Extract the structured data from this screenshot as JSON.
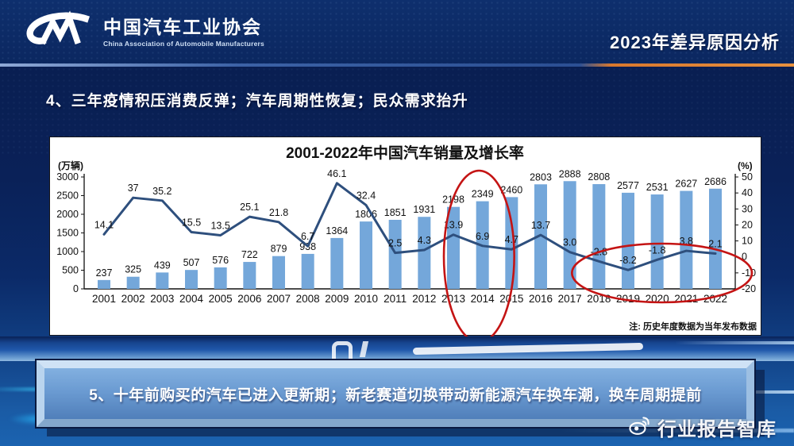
{
  "header": {
    "org_cn": "中国汽车工业协会",
    "org_en": "China Association of Automobile Manufacturers",
    "slide_title": "2023年差异原因分析"
  },
  "section4_title": "4、三年疫情积压消费反弹；汽车周期性恢复；民众需求抬升",
  "section5_title": "5、十年前购买的汽车已进入更新期；新老赛道切换带动新能源汽车换车潮，换车周期提前",
  "watermark": "行业报告智库",
  "chart_data": {
    "type": "bar",
    "combo": "bar+line",
    "title": "2001-2022年中国汽车销量及增长率",
    "note": "注: 历史年度数据为当年发布数据",
    "grid": false,
    "legend": "none",
    "categories": [
      "2001",
      "2002",
      "2003",
      "2004",
      "2005",
      "2006",
      "2007",
      "2008",
      "2009",
      "2010",
      "2011",
      "2012",
      "2013",
      "2014",
      "2015",
      "2016",
      "2017",
      "2018",
      "2019",
      "2020",
      "2021",
      "2022"
    ],
    "left_axis": {
      "label": "(万辆)",
      "range": [
        0,
        3000
      ],
      "ticks": [
        3000,
        2500,
        2000,
        1500,
        1000,
        500,
        0
      ]
    },
    "right_axis": {
      "label": "(%)",
      "range": [
        -20,
        50
      ],
      "ticks": [
        50,
        40,
        30,
        20,
        10,
        0,
        -10,
        -20
      ]
    },
    "series": [
      {
        "name": "汽车销量(万辆)",
        "plot": "bar",
        "axis": "left",
        "color": "#74a7da",
        "values": [
          237,
          325,
          439,
          507,
          576,
          722,
          879,
          938,
          1364,
          1806,
          1851,
          1931,
          2198,
          2349,
          2460,
          2803,
          2888,
          2808,
          2577,
          2531,
          2627,
          2686
        ]
      },
      {
        "name": "增长率(%)",
        "plot": "line",
        "axis": "right",
        "color": "#2e4f7d",
        "labels": [
          "14.1",
          "37",
          "35.2",
          "15.5",
          "13.5",
          "25.1",
          "21.8",
          "6.7",
          "46.1",
          "32.4",
          "2.5",
          "4.3",
          "13.9",
          "6.9",
          "4.7",
          "13.7",
          "3.0",
          "-2.8",
          "-8.2",
          "-1.8",
          "3.8",
          "2.1"
        ]
      }
    ],
    "annotations": [
      {
        "shape": "ellipse",
        "orientation": "vertical",
        "from": "2013",
        "to": "2014",
        "color": "#c41414"
      },
      {
        "shape": "ellipse",
        "orientation": "horizontal",
        "from": "2018",
        "to": "2022",
        "color": "#c41414"
      }
    ]
  }
}
